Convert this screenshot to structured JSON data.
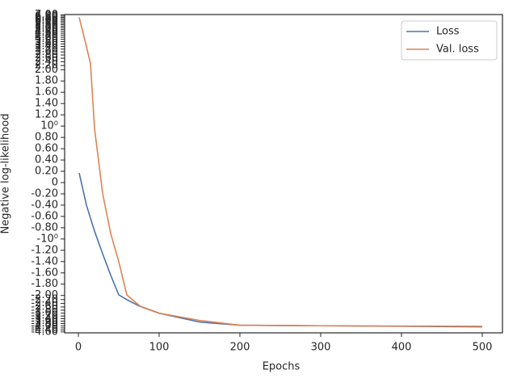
{
  "chart_data": {
    "type": "line",
    "xlabel": "Epochs",
    "ylabel": "Negative log-likelihood",
    "yscale": "symlog",
    "linthresh": 2,
    "legend": "upper right",
    "x": [
      1,
      10,
      15,
      20,
      25,
      30,
      40,
      50,
      60,
      75,
      80,
      100,
      150,
      200,
      300,
      500
    ],
    "series": [
      {
        "name": "Loss",
        "color": "#4c72b0",
        "values": [
          0.17,
          -0.4,
          -0.63,
          -0.86,
          -1.06,
          -1.26,
          -1.64,
          -1.99,
          -2.2,
          -2.54,
          -2.62,
          -3.0,
          -3.67,
          -3.95,
          -4.0,
          -4.1
        ]
      },
      {
        "name": "Val. loss",
        "color": "#dd8452",
        "values": [
          6.62,
          3.4,
          2.3,
          0.96,
          0.39,
          -0.19,
          -0.9,
          -1.4,
          -1.99,
          -2.5,
          -2.64,
          -3.0,
          -3.54,
          -3.95,
          -4.0,
          -4.05
        ]
      }
    ],
    "xlim": [
      -17,
      525
    ],
    "xticks": [
      0,
      100,
      200,
      300,
      400,
      500
    ],
    "ylim": [
      -4.7,
      7.05
    ],
    "yticks": [
      {
        "value": -4.6,
        "label": "-4.60"
      },
      {
        "value": -4.4,
        "label": "-4.40"
      },
      {
        "value": -4.2,
        "label": "-4.20"
      },
      {
        "value": -4,
        "label": "-4.00"
      },
      {
        "value": -3.8,
        "label": "-3.80"
      },
      {
        "value": -3.6,
        "label": "-3.60"
      },
      {
        "value": -3.4,
        "label": "-3.40"
      },
      {
        "value": -3.2,
        "label": "-3.20"
      },
      {
        "value": -3,
        "label": "-3.00"
      },
      {
        "value": -2.8,
        "label": "-2.80"
      },
      {
        "value": -2.6,
        "label": "-2.60"
      },
      {
        "value": -2.4,
        "label": "-2.40"
      },
      {
        "value": -2.2,
        "label": "-2.20"
      },
      {
        "value": -2,
        "label": "-2.00"
      },
      {
        "value": -1.8,
        "label": "-1.80"
      },
      {
        "value": -1.6,
        "label": "-1.60"
      },
      {
        "value": -1.4,
        "label": "-1.40"
      },
      {
        "value": -1.2,
        "label": "-1.20"
      },
      {
        "value": -1,
        "label": "-10⁰"
      },
      {
        "value": -0.8,
        "label": "-0.80"
      },
      {
        "value": -0.6,
        "label": "-0.60"
      },
      {
        "value": -0.4,
        "label": "-0.40"
      },
      {
        "value": -0.2,
        "label": "-0.20"
      },
      0,
      {
        "value": 0.2,
        "label": "0.20"
      },
      {
        "value": 0.4,
        "label": "0.40"
      },
      {
        "value": 0.6,
        "label": "0.60"
      },
      {
        "value": 0.8,
        "label": "0.80"
      },
      {
        "value": 1,
        "label": "10⁰"
      },
      {
        "value": 1.2,
        "label": "1.20"
      },
      {
        "value": 1.4,
        "label": "1.40"
      },
      {
        "value": 1.6,
        "label": "1.60"
      },
      {
        "value": 1.8,
        "label": "1.80"
      },
      {
        "value": 2,
        "label": "2.00"
      },
      {
        "value": 2.2,
        "label": "2.20"
      },
      {
        "value": 2.4,
        "label": "2.40"
      },
      {
        "value": 2.6,
        "label": "2.60"
      },
      {
        "value": 2.8,
        "label": "2.80"
      },
      {
        "value": 3,
        "label": "3.00"
      },
      {
        "value": 3.2,
        "label": "3.20"
      },
      {
        "value": 3.4,
        "label": "3.40"
      },
      {
        "value": 3.6,
        "label": "3.60"
      },
      {
        "value": 3.8,
        "label": "3.80"
      },
      {
        "value": 4,
        "label": "4.00"
      },
      {
        "value": 4.2,
        "label": "4.20"
      },
      {
        "value": 4.4,
        "label": "4.40"
      },
      {
        "value": 4.6,
        "label": "4.60"
      },
      {
        "value": 4.8,
        "label": "4.80"
      },
      {
        "value": 5,
        "label": "5.00"
      },
      {
        "value": 5.2,
        "label": "5.20"
      },
      {
        "value": 5.4,
        "label": "5.40"
      },
      {
        "value": 5.6,
        "label": "5.60"
      },
      {
        "value": 5.8,
        "label": "5.80"
      },
      {
        "value": 6,
        "label": "6.00"
      },
      {
        "value": 6.2,
        "label": "6.20"
      },
      {
        "value": 6.4,
        "label": "6.40"
      },
      {
        "value": 6.6,
        "label": "6.60"
      },
      {
        "value": 6.8,
        "label": "6.80"
      },
      {
        "value": 7,
        "label": "7.00"
      }
    ]
  }
}
